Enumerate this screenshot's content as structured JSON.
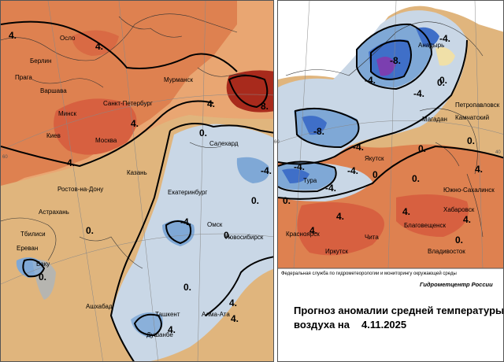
{
  "legend_credit": {
    "agency": "Федеральная служба по гидрометеорологии и мониторингу окружающей среды",
    "center": "Гидрометцентр России"
  },
  "title": {
    "line1": "Прогноз аномалии средней температуры",
    "line2_prefix": "воздуха на",
    "date": "4.11.2025"
  },
  "lat_labels": [
    "60",
    "40",
    "60"
  ],
  "left_map": {
    "cities": [
      "Осло",
      "Берлин",
      "Прага",
      "Варшава",
      "Мурманск",
      "Санкт-Петербург",
      "Минск",
      "Киев",
      "Москва",
      "Салехард",
      "Казань",
      "Ростов-на-Дону",
      "Екатеринбург",
      "Астрахань",
      "Тбилиси",
      "Омск",
      "Новосибирск",
      "Ереван",
      "Баку",
      "Ашхабад",
      "Ташкент",
      "Алма-Ата",
      "Душанбе"
    ],
    "isolines": [
      "4.",
      "4.",
      "4.",
      "8.",
      "4.",
      "4.",
      "-4.",
      "-4.",
      "0.",
      "0.",
      "0.",
      "0.",
      "0.",
      "0.",
      "4.",
      "4.",
      "4."
    ]
  },
  "right_map": {
    "cities": [
      "Анадырь",
      "Петропавловск",
      "Камчатский",
      "Магадан",
      "Якутск",
      "Тура",
      "Южно-Сахалинск",
      "Хабаровск",
      "Благовещенск",
      "Красноярск",
      "Чита",
      "Иркутск",
      "Владивосток"
    ],
    "isolines": [
      "-4.",
      "-8.",
      "-4.",
      "0.",
      "-4.",
      "-8.",
      "-4.",
      "-4.",
      "-4.",
      "-4.",
      "0.",
      "0.",
      "0.",
      "4.",
      "4.",
      "0.",
      "0.",
      "4.",
      "0.",
      "4.",
      "0.",
      "4."
    ]
  }
}
